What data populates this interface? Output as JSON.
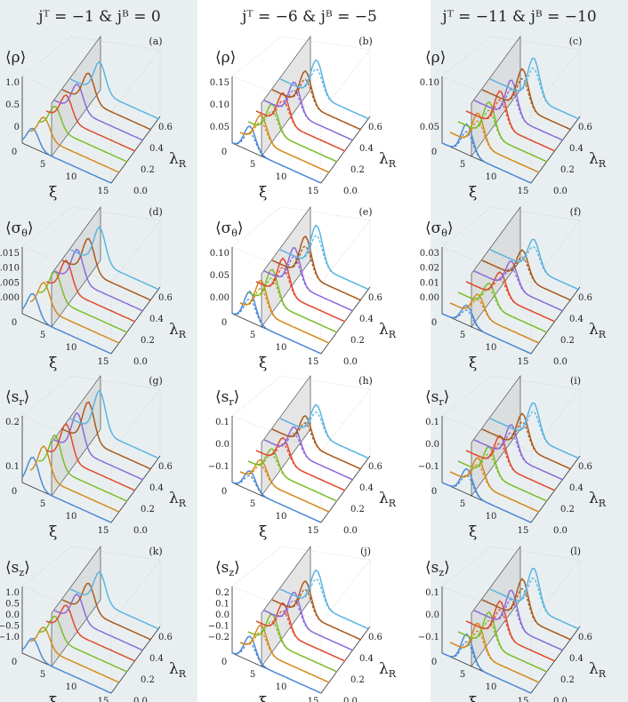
{
  "columns": [
    {
      "header": "jᵀ = −1  &  jᴮ = 0",
      "panels": [
        {
          "label": "(a)",
          "ylabel": {
            "main": "⟨ρ⟩"
          },
          "yticks": [
            "1.0",
            "0.5",
            "0"
          ]
        },
        {
          "label": "(d)",
          "ylabel": {
            "main": "⟨σ",
            "sub": "θ",
            "end": "⟩"
          },
          "yticks": [
            "0.015",
            "0.010",
            "0.005",
            "0.000"
          ]
        },
        {
          "label": "(g)",
          "ylabel": {
            "main": "⟨s",
            "sub": "r",
            "end": "⟩"
          },
          "yticks": [
            "0.2",
            "0.1"
          ]
        },
        {
          "label": "(k)",
          "ylabel": {
            "main": "⟨s",
            "sub": "z",
            "end": "⟩"
          },
          "yticks": [
            "1.0",
            "0.5",
            "0.0",
            "−0.5",
            "−1.0"
          ]
        }
      ]
    },
    {
      "header": "jᵀ = −6  &  jᴮ = −5",
      "panels": [
        {
          "label": "(b)",
          "ylabel": {
            "main": "⟨ρ⟩"
          },
          "yticks": [
            "0.15",
            "0.10",
            "0.05"
          ]
        },
        {
          "label": "(e)",
          "ylabel": {
            "main": "⟨σ",
            "sub": "θ",
            "end": "⟩"
          },
          "yticks": [
            "0.10",
            "0.05",
            "0.00"
          ]
        },
        {
          "label": "(h)",
          "ylabel": {
            "main": "⟨s",
            "sub": "r",
            "end": "⟩"
          },
          "yticks": [
            "0.1",
            "0.0",
            "−0.1"
          ]
        },
        {
          "label": "(j)",
          "ylabel": {
            "main": "⟨s",
            "sub": "z",
            "end": "⟩"
          },
          "yticks": [
            "0.2",
            "0.1",
            "0.0",
            "−0.1",
            "−0.2"
          ]
        }
      ]
    },
    {
      "header": "jᵀ = −11  &  jᴮ = −10",
      "panels": [
        {
          "label": "(c)",
          "ylabel": {
            "main": "⟨ρ⟩"
          },
          "yticks": [
            "0.10",
            "0.05"
          ]
        },
        {
          "label": "(f)",
          "ylabel": {
            "main": "⟨σ",
            "sub": "θ",
            "end": "⟩"
          },
          "yticks": [
            "0.03",
            "0.02",
            "0.01",
            "0.00"
          ]
        },
        {
          "label": "(i)",
          "ylabel": {
            "main": "⟨s",
            "sub": "r",
            "end": "⟩"
          },
          "yticks": [
            "0.1",
            "0.0",
            "−0.1"
          ]
        },
        {
          "label": "(l)",
          "ylabel": {
            "main": "⟨s",
            "sub": "z",
            "end": "⟩"
          },
          "yticks": [
            "0.1",
            "0.0",
            "−0.1"
          ]
        }
      ]
    }
  ],
  "xticks": [
    "0",
    "5",
    "10",
    "15"
  ],
  "xlabel": "ξ",
  "zticks": [
    "0.0",
    "0.2",
    "0.4",
    "0.6"
  ],
  "zlabel": {
    "main": "λ",
    "sub": "R"
  }
}
